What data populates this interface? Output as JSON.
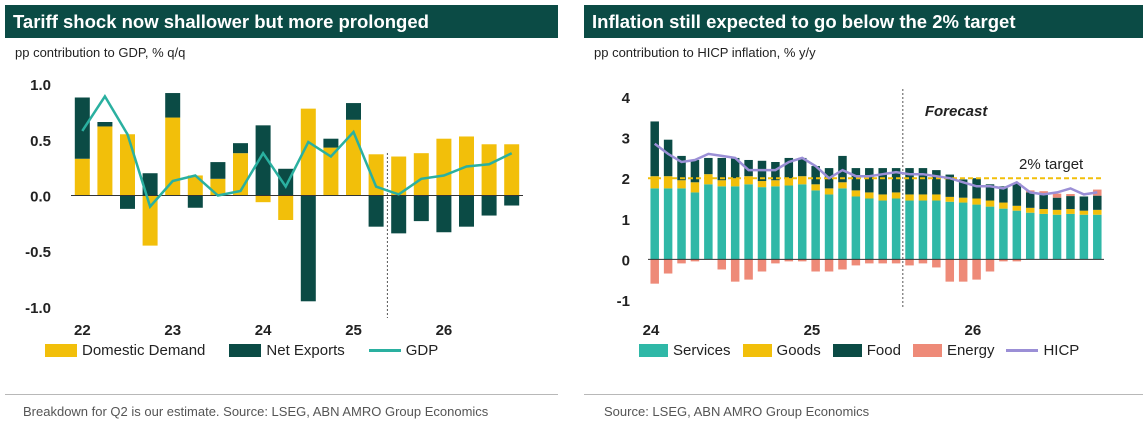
{
  "colors": {
    "title_bg": "#0b4b45",
    "domestic": "#f2bf0a",
    "net_exports": "#0b4b45",
    "gdp": "#2ab0a0",
    "services": "#2fb8a7",
    "goods": "#f2bf0a",
    "food": "#0b4b45",
    "energy": "#ee8a78",
    "hicp": "#9b8fd6",
    "target": "#f2bf0a"
  },
  "left": {
    "title": "Tariff shock now shallower but more prolonged",
    "subtitle": "pp contribution to GDP, % q/q",
    "footer": "Breakdown for Q2 is our estimate. Source: LSEG, ABN AMRO Group Economics",
    "legend": [
      "Domestic Demand",
      "Net Exports",
      "GDP"
    ]
  },
  "right": {
    "title": "Inflation still expected to go below the 2% target",
    "subtitle": "pp contribution to HICP inflation, % y/y",
    "footer": "Source: LSEG, ABN AMRO Group Economics",
    "legend": [
      "Services",
      "Goods",
      "Food",
      "Energy",
      "HICP"
    ]
  },
  "chart_data": [
    {
      "type": "bar",
      "subtitle": "pp contribution to GDP, % q/q",
      "ylim": [
        -1.1,
        1.1
      ],
      "yticks": [
        "1.0",
        "0.5",
        "0.0",
        "-0.5",
        "-1.0"
      ],
      "xtick_labels": [
        "22",
        "23",
        "24",
        "25",
        "26"
      ],
      "forecast_from_index": 14,
      "series": [
        {
          "name": "Domestic Demand",
          "values": [
            0.33,
            0.62,
            0.55,
            -0.45,
            0.7,
            0.18,
            0.15,
            0.38,
            -0.06,
            -0.22,
            0.78,
            0.43,
            0.68,
            0.37,
            0.35,
            0.38,
            0.51,
            0.53,
            0.46,
            0.46
          ]
        },
        {
          "name": "Net Exports",
          "values": [
            0.55,
            0.04,
            -0.12,
            0.2,
            0.22,
            -0.11,
            0.15,
            0.09,
            0.63,
            0.24,
            -0.95,
            0.08,
            0.15,
            -0.28,
            -0.34,
            -0.23,
            -0.33,
            -0.28,
            -0.18,
            -0.09
          ]
        },
        {
          "name": "GDP",
          "values": [
            0.58,
            0.89,
            0.55,
            -0.1,
            0.13,
            0.18,
            0.0,
            0.04,
            0.38,
            0.08,
            0.48,
            0.35,
            0.57,
            0.08,
            0.01,
            0.15,
            0.18,
            0.26,
            0.28,
            0.38
          ]
        }
      ]
    },
    {
      "type": "bar",
      "subtitle": "pp contribution to HICP inflation, % y/y",
      "ylim": [
        -1.2,
        4.2
      ],
      "yticks": [
        "4",
        "3",
        "2",
        "1",
        "0",
        "-1"
      ],
      "xtick_labels": [
        "24",
        "25",
        "26"
      ],
      "forecast_label": "Forecast",
      "forecast_from_index": 19,
      "target_label": "2% target",
      "target": 2,
      "series": [
        {
          "name": "Services",
          "values": [
            1.75,
            1.75,
            1.75,
            1.65,
            1.85,
            1.8,
            1.8,
            1.85,
            1.78,
            1.8,
            1.82,
            1.85,
            1.7,
            1.6,
            1.75,
            1.55,
            1.5,
            1.45,
            1.5,
            1.45,
            1.45,
            1.45,
            1.42,
            1.4,
            1.35,
            1.3,
            1.25,
            1.2,
            1.15,
            1.12,
            1.1,
            1.12,
            1.1,
            1.1
          ]
        },
        {
          "name": "Goods",
          "values": [
            0.3,
            0.3,
            0.2,
            0.25,
            0.25,
            0.15,
            0.2,
            0.2,
            0.15,
            0.15,
            0.18,
            0.2,
            0.15,
            0.15,
            0.15,
            0.15,
            0.15,
            0.15,
            0.15,
            0.15,
            0.15,
            0.15,
            0.12,
            0.12,
            0.15,
            0.15,
            0.15,
            0.12,
            0.12,
            0.12,
            0.12,
            0.12,
            0.1,
            0.12
          ]
        },
        {
          "name": "Food",
          "values": [
            1.35,
            0.9,
            0.6,
            0.55,
            0.4,
            0.55,
            0.5,
            0.4,
            0.5,
            0.45,
            0.5,
            0.45,
            0.45,
            0.5,
            0.65,
            0.55,
            0.6,
            0.65,
            0.6,
            0.65,
            0.65,
            0.6,
            0.55,
            0.45,
            0.5,
            0.4,
            0.4,
            0.55,
            0.38,
            0.36,
            0.3,
            0.32,
            0.35,
            0.35
          ]
        },
        {
          "name": "Energy",
          "values": [
            -0.6,
            -0.35,
            -0.1,
            -0.05,
            0.0,
            -0.25,
            -0.55,
            -0.5,
            -0.3,
            -0.1,
            -0.05,
            -0.05,
            -0.3,
            -0.3,
            -0.25,
            -0.15,
            -0.1,
            -0.1,
            -0.1,
            -0.15,
            -0.1,
            -0.2,
            -0.55,
            -0.55,
            -0.5,
            -0.3,
            -0.05,
            -0.05,
            0.05,
            0.08,
            0.1,
            0.05,
            0.0,
            0.15
          ]
        },
        {
          "name": "HICP",
          "values": [
            2.85,
            2.6,
            2.4,
            2.45,
            2.6,
            2.55,
            2.5,
            2.2,
            2.2,
            2.2,
            2.4,
            2.5,
            2.3,
            2.0,
            2.2,
            2.05,
            2.05,
            2.1,
            2.15,
            2.1,
            2.1,
            2.05,
            2.0,
            1.9,
            1.8,
            1.8,
            1.75,
            1.9,
            1.65,
            1.6,
            1.65,
            1.75,
            1.6,
            1.65
          ]
        }
      ]
    }
  ]
}
